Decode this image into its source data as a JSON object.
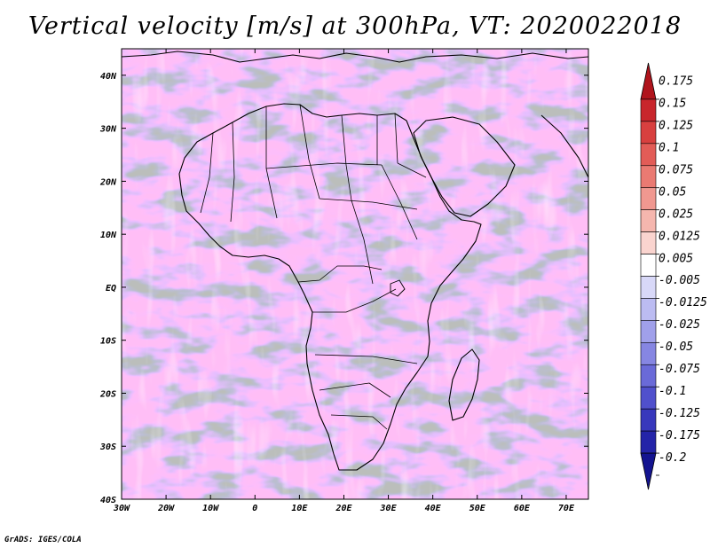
{
  "title": "Vertical velocity [m/s] at 300hPa, VT: 2020022018",
  "credit": "GrADS: IGES/COLA",
  "lat_labels": [
    "40N",
    "30N",
    "20N",
    "10N",
    "EQ",
    "10S",
    "20S",
    "30S",
    "40S"
  ],
  "lat_values": [
    40,
    30,
    20,
    10,
    0,
    -10,
    -20,
    -30,
    -40
  ],
  "lon_labels": [
    "30W",
    "20W",
    "10W",
    "0",
    "10E",
    "20E",
    "30E",
    "40E",
    "50E",
    "60E",
    "70E"
  ],
  "lon_values": [
    -30,
    -20,
    -10,
    0,
    10,
    20,
    30,
    40,
    50,
    60,
    70
  ],
  "extent": {
    "lon_min": -30,
    "lon_max": 75,
    "lat_min": -40,
    "lat_max": 45
  },
  "colorbar": {
    "labels": [
      "0.175",
      "0.15",
      "0.125",
      "0.1",
      "0.075",
      "0.05",
      "0.025",
      "0.0125",
      "0.005",
      "-0.005",
      "-0.0125",
      "-0.025",
      "-0.05",
      "-0.075",
      "-0.1",
      "-0.125",
      "-0.175",
      "-0.2"
    ],
    "colors": [
      "#b0141c",
      "#c8262c",
      "#d8403f",
      "#e25c57",
      "#ea7a72",
      "#f09890",
      "#f5b6ae",
      "#fad4cf",
      "#ffffff",
      "#d8d8f8",
      "#bcbcf2",
      "#a0a0ea",
      "#8686e2",
      "#6a6ad8",
      "#5050cc",
      "#3838bc",
      "#2424a8",
      "#141490"
    ]
  },
  "map_colors": {
    "land_outline": "#000000",
    "positive": "#e8837b",
    "negative": "#7f7fe0"
  }
}
